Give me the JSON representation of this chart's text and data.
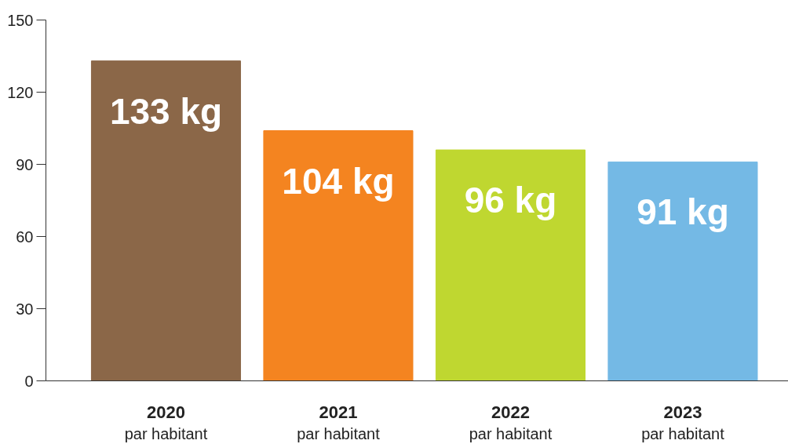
{
  "chart_data": {
    "type": "bar",
    "categories": [
      "2020\npar habitant",
      "2021\npar habitant",
      "2022\npar habitant",
      "2023\npar habitant"
    ],
    "values": [
      133,
      104,
      96,
      91
    ],
    "colors": [
      "#8b6748",
      "#f48420",
      "#bfd730",
      "#74b9e5"
    ],
    "value_labels": [
      "133 kg",
      "104 kg",
      "96 kg",
      "91 kg"
    ],
    "ylim": [
      0,
      150
    ],
    "yticks": [
      0,
      30,
      60,
      90,
      120,
      150
    ],
    "grid": false
  }
}
